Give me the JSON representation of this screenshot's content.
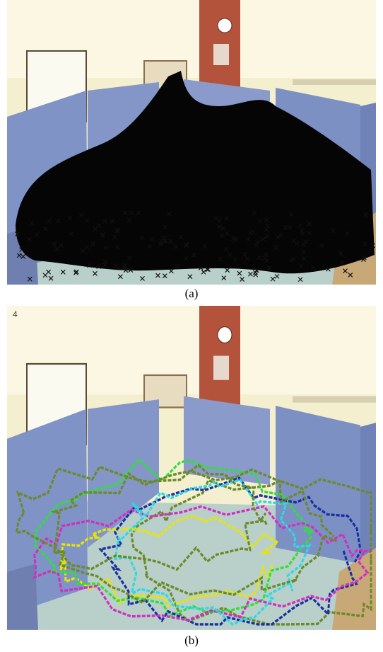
{
  "figure": {
    "panels": [
      {
        "caption": "(a)"
      },
      {
        "caption": "(b)",
        "frame_label": "4"
      }
    ]
  }
}
